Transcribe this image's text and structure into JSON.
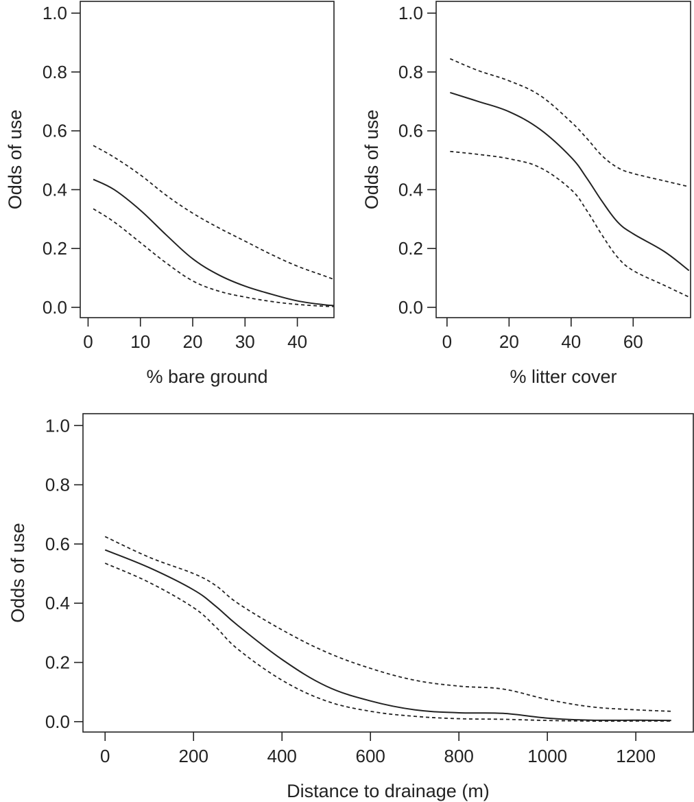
{
  "chart_data": [
    {
      "type": "line",
      "xlabel": "% bare ground",
      "ylabel": "Odds of use",
      "xlim": [
        -1.5,
        47
      ],
      "ylim": [
        -0.035,
        1.04
      ],
      "xticks": [
        0,
        10,
        20,
        30,
        40
      ],
      "yticks": [
        0.0,
        0.2,
        0.4,
        0.6,
        0.8,
        1.0
      ],
      "ytick_labels": [
        "0.0",
        "0.2",
        "0.4",
        "0.6",
        "0.8",
        "1.0"
      ],
      "x": [
        1,
        5,
        10,
        15,
        20,
        25,
        30,
        35,
        40,
        45,
        47
      ],
      "series": [
        {
          "style": "solid",
          "values": [
            0.435,
            0.4,
            0.33,
            0.245,
            0.165,
            0.11,
            0.072,
            0.045,
            0.022,
            0.009,
            0.006
          ]
        },
        {
          "style": "dashed",
          "values": [
            0.55,
            0.51,
            0.45,
            0.38,
            0.32,
            0.27,
            0.225,
            0.18,
            0.14,
            0.108,
            0.095
          ]
        },
        {
          "style": "dashed",
          "values": [
            0.335,
            0.29,
            0.22,
            0.15,
            0.09,
            0.055,
            0.035,
            0.02,
            0.01,
            0.004,
            0.003
          ]
        }
      ]
    },
    {
      "type": "line",
      "xlabel": "% litter cover",
      "ylabel": "Odds of use",
      "xlim": [
        -3.5,
        78.5
      ],
      "ylim": [
        -0.035,
        1.04
      ],
      "xticks": [
        0,
        20,
        40,
        60
      ],
      "yticks": [
        0.0,
        0.2,
        0.4,
        0.6,
        0.8,
        1.0
      ],
      "ytick_labels": [
        "0.0",
        "0.2",
        "0.4",
        "0.6",
        "0.8",
        "1.0"
      ],
      "x": [
        1,
        10,
        20,
        30,
        40,
        45,
        50,
        55,
        60,
        70,
        78
      ],
      "series": [
        {
          "style": "solid",
          "values": [
            0.73,
            0.7,
            0.665,
            0.605,
            0.51,
            0.44,
            0.36,
            0.29,
            0.25,
            0.19,
            0.125
          ]
        },
        {
          "style": "dashed",
          "values": [
            0.845,
            0.805,
            0.77,
            0.72,
            0.63,
            0.575,
            0.515,
            0.475,
            0.455,
            0.43,
            0.41
          ]
        },
        {
          "style": "dashed",
          "values": [
            0.53,
            0.52,
            0.505,
            0.475,
            0.4,
            0.33,
            0.245,
            0.17,
            0.125,
            0.075,
            0.035
          ]
        }
      ]
    },
    {
      "type": "line",
      "xlabel": "Distance to drainage (m)",
      "ylabel": "Odds of use",
      "xlim": [
        -50,
        1330
      ],
      "ylim": [
        -0.035,
        1.04
      ],
      "xticks": [
        0,
        200,
        400,
        600,
        800,
        1000,
        1200
      ],
      "yticks": [
        0.0,
        0.2,
        0.4,
        0.6,
        0.8,
        1.0
      ],
      "ytick_labels": [
        "0.0",
        "0.2",
        "0.4",
        "0.6",
        "0.8",
        "1.0"
      ],
      "x": [
        0,
        100,
        200,
        250,
        300,
        400,
        500,
        600,
        700,
        800,
        900,
        1000,
        1100,
        1200,
        1280
      ],
      "series": [
        {
          "style": "solid",
          "values": [
            0.58,
            0.52,
            0.445,
            0.39,
            0.325,
            0.21,
            0.12,
            0.07,
            0.04,
            0.03,
            0.028,
            0.012,
            0.005,
            0.005,
            0.004
          ]
        },
        {
          "style": "dashed",
          "values": [
            0.625,
            0.555,
            0.5,
            0.46,
            0.4,
            0.31,
            0.235,
            0.18,
            0.14,
            0.12,
            0.11,
            0.075,
            0.05,
            0.04,
            0.035
          ]
        },
        {
          "style": "dashed",
          "values": [
            0.535,
            0.47,
            0.385,
            0.32,
            0.245,
            0.14,
            0.07,
            0.035,
            0.018,
            0.01,
            0.008,
            0.004,
            0.002,
            0.002,
            0.002
          ]
        }
      ]
    }
  ]
}
